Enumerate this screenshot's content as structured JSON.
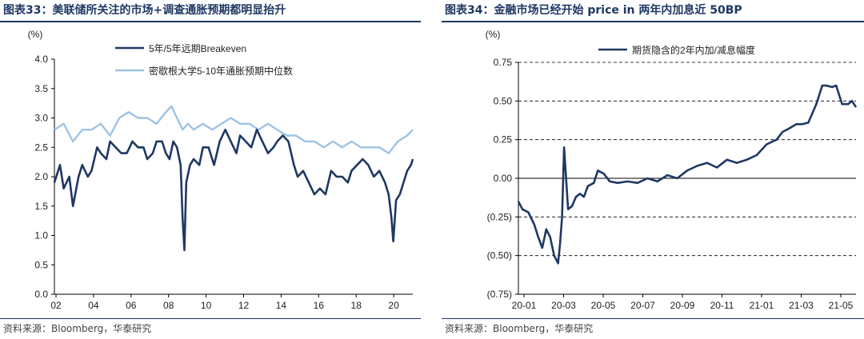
{
  "panels": [
    {
      "title": "图表33：美联储所关注的市场+调查通胀预期都明显抬升",
      "source": "资料来源：Bloomberg，华泰研究",
      "chart_data": {
        "type": "line",
        "ylabel": "(%)",
        "ylim": [
          0.0,
          4.0
        ],
        "yticks": [
          "0.0",
          "0.5",
          "1.0",
          "1.5",
          "2.0",
          "2.5",
          "3.0",
          "3.5",
          "4.0"
        ],
        "xticks": [
          "02",
          "04",
          "06",
          "08",
          "10",
          "12",
          "14",
          "16",
          "18",
          "20"
        ],
        "xlim": [
          2002.0,
          2021.3
        ],
        "legend": "top-center",
        "grid": false,
        "series": [
          {
            "name": "5年/5年远期Breakeven",
            "color": "#1f3864",
            "x": [
              2002.0,
              2002.3,
              2002.5,
              2002.8,
              2003.0,
              2003.3,
              2003.5,
              2003.8,
              2004.0,
              2004.3,
              2004.5,
              2004.8,
              2005.0,
              2005.3,
              2005.6,
              2005.9,
              2006.2,
              2006.5,
              2006.8,
              2007.0,
              2007.3,
              2007.5,
              2007.8,
              2008.0,
              2008.2,
              2008.4,
              2008.6,
              2008.8,
              2008.9,
              2009.0,
              2009.1,
              2009.3,
              2009.5,
              2009.8,
              2010.0,
              2010.3,
              2010.6,
              2010.9,
              2011.2,
              2011.5,
              2011.8,
              2012.0,
              2012.3,
              2012.6,
              2012.9,
              2013.2,
              2013.5,
              2013.8,
              2014.0,
              2014.3,
              2014.6,
              2014.9,
              2015.1,
              2015.4,
              2015.7,
              2016.0,
              2016.3,
              2016.6,
              2016.9,
              2017.2,
              2017.5,
              2017.8,
              2018.0,
              2018.3,
              2018.6,
              2018.9,
              2019.2,
              2019.5,
              2019.8,
              2020.0,
              2020.15,
              2020.25,
              2020.4,
              2020.6,
              2020.8,
              2021.0,
              2021.2,
              2021.3
            ],
            "values": [
              1.9,
              2.2,
              1.8,
              2.0,
              1.5,
              2.0,
              2.2,
              2.0,
              2.1,
              2.5,
              2.4,
              2.3,
              2.6,
              2.5,
              2.4,
              2.4,
              2.6,
              2.5,
              2.5,
              2.3,
              2.4,
              2.6,
              2.6,
              2.4,
              2.3,
              2.6,
              2.5,
              2.2,
              1.3,
              0.75,
              1.9,
              2.2,
              2.3,
              2.2,
              2.5,
              2.5,
              2.2,
              2.6,
              2.8,
              2.6,
              2.4,
              2.7,
              2.6,
              2.5,
              2.8,
              2.6,
              2.4,
              2.5,
              2.6,
              2.7,
              2.6,
              2.2,
              2.0,
              2.1,
              1.9,
              1.7,
              1.8,
              1.7,
              2.1,
              2.0,
              2.0,
              1.9,
              2.1,
              2.2,
              2.3,
              2.2,
              2.0,
              2.1,
              1.9,
              1.7,
              1.3,
              0.9,
              1.6,
              1.7,
              1.9,
              2.1,
              2.2,
              2.3
            ]
          },
          {
            "name": "密歇根大学5-10年通胀预期中位数",
            "color": "#9dc3e6",
            "x": [
              2002.0,
              2002.5,
              2003.0,
              2003.5,
              2004.0,
              2004.5,
              2005.0,
              2005.5,
              2006.0,
              2006.5,
              2007.0,
              2007.5,
              2008.0,
              2008.3,
              2008.6,
              2008.9,
              2009.2,
              2009.5,
              2010.0,
              2010.5,
              2011.0,
              2011.5,
              2012.0,
              2012.5,
              2013.0,
              2013.5,
              2014.0,
              2014.5,
              2015.0,
              2015.5,
              2016.0,
              2016.5,
              2017.0,
              2017.5,
              2018.0,
              2018.5,
              2019.0,
              2019.5,
              2020.0,
              2020.5,
              2021.0,
              2021.3
            ],
            "values": [
              2.8,
              2.9,
              2.6,
              2.8,
              2.8,
              2.9,
              2.7,
              3.0,
              3.1,
              3.0,
              3.0,
              2.9,
              3.1,
              3.2,
              3.0,
              2.8,
              2.9,
              2.8,
              2.9,
              2.8,
              2.9,
              3.0,
              2.9,
              2.9,
              2.8,
              2.9,
              2.8,
              2.7,
              2.7,
              2.6,
              2.6,
              2.5,
              2.6,
              2.5,
              2.6,
              2.5,
              2.5,
              2.5,
              2.4,
              2.6,
              2.7,
              2.8
            ]
          }
        ]
      }
    },
    {
      "title": "图表34：金融市场已经开始 price in 两年内加息近 50BP",
      "source": "资料来源：Bloomberg，华泰研究",
      "chart_data": {
        "type": "line",
        "ylabel": "(%)",
        "ylim": [
          -0.75,
          0.75
        ],
        "yticks": [
          "(0.75)",
          "(0.50)",
          "(0.25)",
          "0.00",
          "0.25",
          "0.50",
          "0.75"
        ],
        "xticks": [
          "20-01",
          "20-03",
          "20-05",
          "20-07",
          "20-09",
          "20-11",
          "21-01",
          "21-03",
          "21-05"
        ],
        "xlim": [
          0.0,
          17.0
        ],
        "legend": "top-center",
        "grid": true,
        "series": [
          {
            "name": "期货隐含的2年内加/减息幅度",
            "color": "#1f3864",
            "x": [
              0.0,
              0.2,
              0.5,
              0.8,
              1.0,
              1.2,
              1.4,
              1.6,
              1.8,
              2.0,
              2.1,
              2.2,
              2.3,
              2.5,
              2.7,
              2.9,
              3.1,
              3.3,
              3.5,
              3.8,
              4.0,
              4.3,
              4.6,
              5.0,
              5.5,
              6.0,
              6.5,
              7.0,
              7.5,
              8.0,
              8.5,
              9.0,
              9.5,
              10.0,
              10.5,
              11.0,
              11.5,
              12.0,
              12.5,
              13.0,
              13.3,
              13.6,
              14.0,
              14.3,
              14.6,
              15.0,
              15.3,
              15.5,
              15.8,
              16.0,
              16.3,
              16.6,
              16.8,
              17.0
            ],
            "values": [
              -0.15,
              -0.2,
              -0.22,
              -0.3,
              -0.38,
              -0.45,
              -0.33,
              -0.38,
              -0.5,
              -0.55,
              -0.42,
              -0.25,
              0.2,
              -0.2,
              -0.18,
              -0.12,
              -0.1,
              -0.12,
              -0.05,
              -0.03,
              0.05,
              0.03,
              -0.02,
              -0.03,
              -0.02,
              -0.03,
              0.0,
              -0.02,
              0.02,
              0.0,
              0.05,
              0.08,
              0.1,
              0.07,
              0.12,
              0.1,
              0.12,
              0.15,
              0.22,
              0.25,
              0.3,
              0.32,
              0.35,
              0.35,
              0.36,
              0.48,
              0.6,
              0.6,
              0.59,
              0.6,
              0.48,
              0.48,
              0.5,
              0.46
            ]
          }
        ]
      }
    }
  ]
}
